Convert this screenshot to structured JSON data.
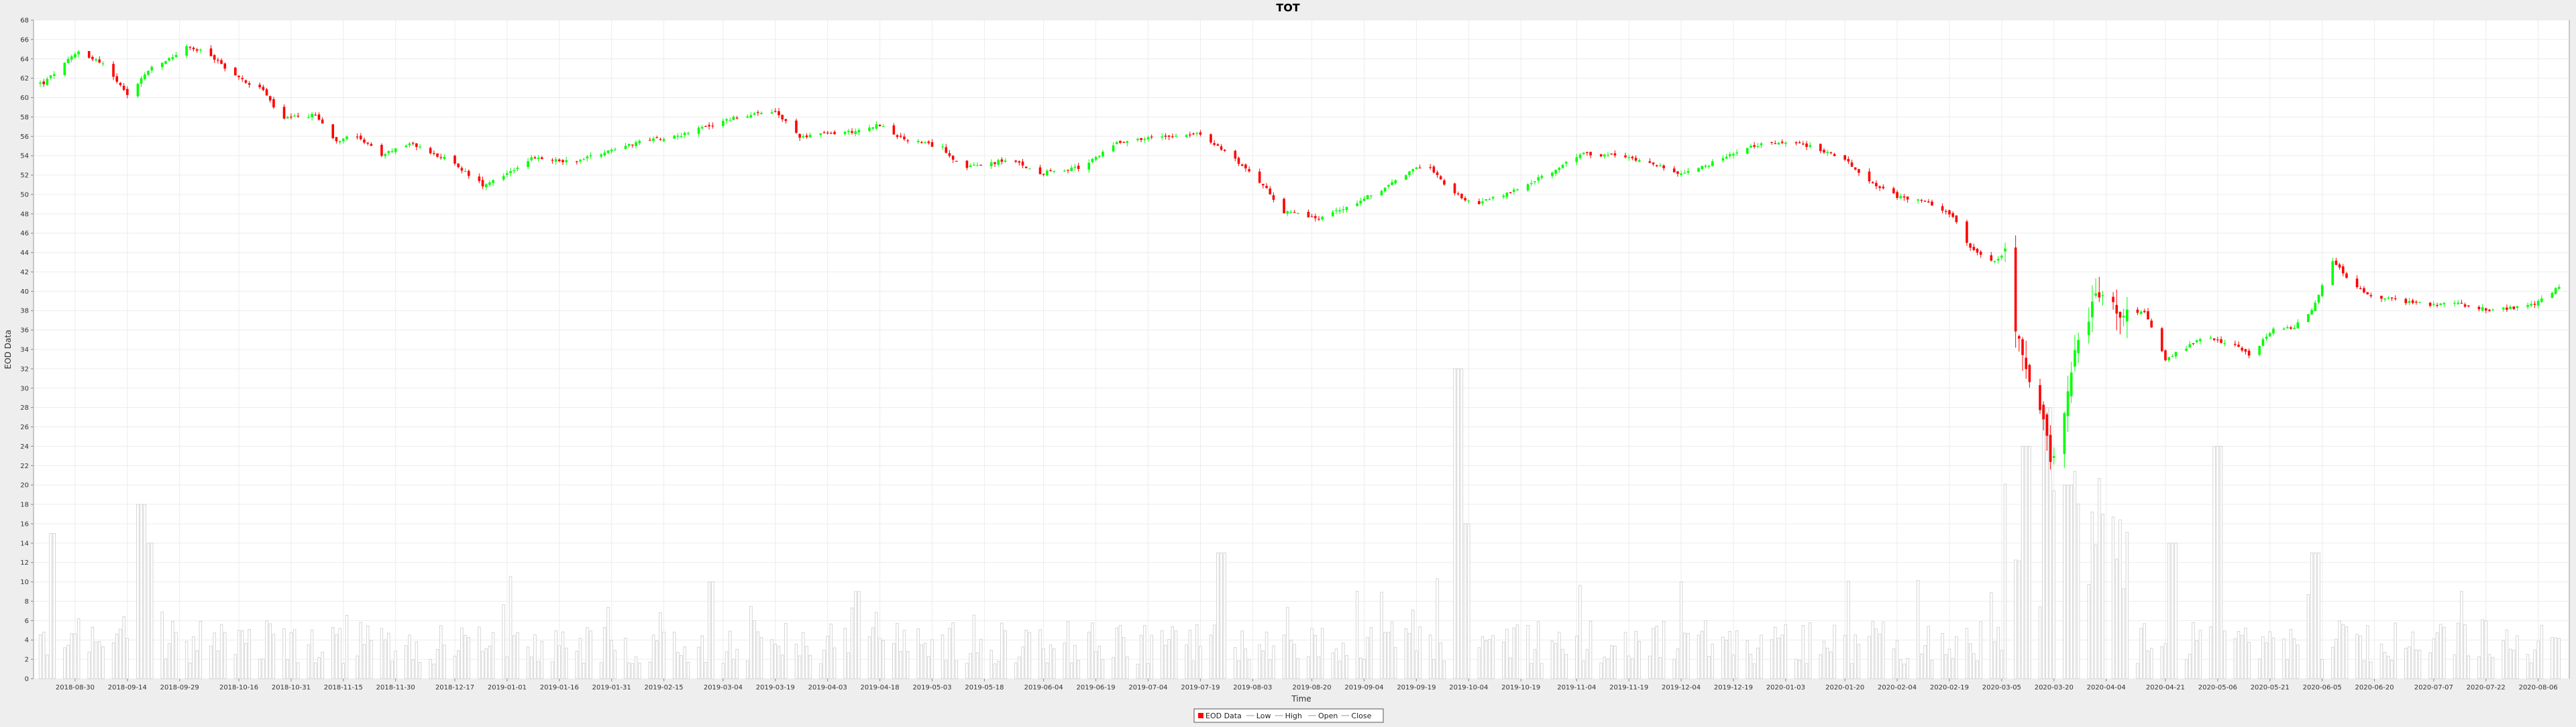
{
  "chart_data": {
    "type": "candlestick",
    "title": "TOT",
    "xlabel": "Time",
    "ylabel": "EOD Data",
    "ylim": [
      0,
      68
    ],
    "yticks": [
      0,
      2,
      4,
      6,
      8,
      10,
      12,
      14,
      16,
      18,
      20,
      22,
      24,
      26,
      28,
      30,
      32,
      34,
      36,
      38,
      40,
      42,
      44,
      46,
      48,
      50,
      52,
      54,
      56,
      58,
      60,
      62,
      64,
      66,
      68
    ],
    "xlim": [
      "2018-08-20",
      "2020-08-13"
    ],
    "xticks": [
      "2018-08-30",
      "2018-09-14",
      "2018-09-29",
      "2018-10-16",
      "2018-10-31",
      "2018-11-15",
      "2018-11-30",
      "2018-12-17",
      "2019-01-01",
      "2019-01-16",
      "2019-01-31",
      "2019-02-15",
      "2019-03-04",
      "2019-03-19",
      "2019-04-03",
      "2019-04-18",
      "2019-05-03",
      "2019-05-18",
      "2019-06-04",
      "2019-06-19",
      "2019-07-04",
      "2019-07-19",
      "2019-08-03",
      "2019-08-20",
      "2019-09-04",
      "2019-09-19",
      "2019-10-04",
      "2019-10-19",
      "2019-11-04",
      "2019-11-19",
      "2019-12-04",
      "2019-12-19",
      "2020-01-03",
      "2020-01-20",
      "2020-02-04",
      "2020-02-19",
      "2020-03-05",
      "2020-03-20",
      "2020-04-04",
      "2020-04-21",
      "2020-05-06",
      "2020-05-21",
      "2020-06-05",
      "2020-06-20",
      "2020-07-07",
      "2020-07-22",
      "2020-08-06"
    ],
    "grid": true,
    "legend_position": "bottom-center",
    "legend": [
      "EOD Data",
      "Low",
      "High",
      "Open",
      "Close"
    ],
    "up_color": "#00ff00",
    "down_color": "#ff0000",
    "volume_color": "#cccccc",
    "price_path": [
      [
        "2018-08-21",
        61.5
      ],
      [
        "2018-08-31",
        64.8
      ],
      [
        "2018-09-07",
        63.5
      ],
      [
        "2018-09-14",
        60.2
      ],
      [
        "2018-09-20",
        62.8
      ],
      [
        "2018-09-26",
        64.0
      ],
      [
        "2018-10-01",
        65.2
      ],
      [
        "2018-10-07",
        64.6
      ],
      [
        "2018-10-16",
        62.0
      ],
      [
        "2018-10-23",
        60.8
      ],
      [
        "2018-10-28",
        57.8
      ],
      [
        "2018-11-07",
        58.2
      ],
      [
        "2018-11-13",
        55.5
      ],
      [
        "2018-11-18",
        56.4
      ],
      [
        "2018-11-26",
        54.0
      ],
      [
        "2018-12-04",
        55.3
      ],
      [
        "2018-12-15",
        53.6
      ],
      [
        "2018-12-25",
        51.0
      ],
      [
        "2019-01-01",
        52.2
      ],
      [
        "2019-01-08",
        53.7
      ],
      [
        "2019-01-20",
        53.4
      ],
      [
        "2019-02-05",
        55.2
      ],
      [
        "2019-02-20",
        56.2
      ],
      [
        "2019-03-08",
        58.0
      ],
      [
        "2019-03-19",
        58.5
      ],
      [
        "2019-03-26",
        56.0
      ],
      [
        "2019-04-10",
        56.5
      ],
      [
        "2019-04-18",
        57.2
      ],
      [
        "2019-04-24",
        55.8
      ],
      [
        "2019-05-06",
        54.8
      ],
      [
        "2019-05-12",
        52.7
      ],
      [
        "2019-05-25",
        53.6
      ],
      [
        "2019-06-03",
        52.2
      ],
      [
        "2019-06-15",
        52.8
      ],
      [
        "2019-06-25",
        55.4
      ],
      [
        "2019-07-08",
        56.0
      ],
      [
        "2019-07-18",
        56.3
      ],
      [
        "2019-07-28",
        54.0
      ],
      [
        "2019-08-06",
        51.0
      ],
      [
        "2019-08-12",
        48.2
      ],
      [
        "2019-08-22",
        47.5
      ],
      [
        "2019-09-02",
        49.2
      ],
      [
        "2019-09-14",
        51.5
      ],
      [
        "2019-09-22",
        53.4
      ],
      [
        "2019-09-28",
        50.5
      ],
      [
        "2019-10-06",
        49.0
      ],
      [
        "2019-10-16",
        50.2
      ],
      [
        "2019-10-28",
        52.3
      ],
      [
        "2019-11-05",
        54.2
      ],
      [
        "2019-11-15",
        54.0
      ],
      [
        "2019-11-24",
        53.5
      ],
      [
        "2019-12-04",
        52.0
      ],
      [
        "2019-12-14",
        53.4
      ],
      [
        "2019-12-25",
        55.0
      ],
      [
        "2020-01-03",
        55.5
      ],
      [
        "2020-01-10",
        55.0
      ],
      [
        "2020-01-20",
        53.6
      ],
      [
        "2020-01-28",
        51.2
      ],
      [
        "2020-02-04",
        49.8
      ],
      [
        "2020-02-12",
        49.2
      ],
      [
        "2020-02-20",
        47.8
      ],
      [
        "2020-02-25",
        44.5
      ],
      [
        "2020-03-02",
        43.0
      ],
      [
        "2020-03-06",
        43.8
      ],
      [
        "2020-03-09",
        36.0
      ],
      [
        "2020-03-13",
        30.5
      ],
      [
        "2020-03-17",
        26.5
      ],
      [
        "2020-03-19",
        22.5
      ],
      [
        "2020-03-23",
        27.5
      ],
      [
        "2020-03-26",
        34.0
      ],
      [
        "2020-03-31",
        38.5
      ],
      [
        "2020-04-03",
        40.2
      ],
      [
        "2020-04-08",
        37.5
      ],
      [
        "2020-04-15",
        37.8
      ],
      [
        "2020-04-21",
        33.0
      ],
      [
        "2020-05-02",
        35.2
      ],
      [
        "2020-05-10",
        34.6
      ],
      [
        "2020-05-15",
        33.4
      ],
      [
        "2020-05-22",
        36.0
      ],
      [
        "2020-05-28",
        36.3
      ],
      [
        "2020-06-02",
        38.0
      ],
      [
        "2020-06-05",
        40.5
      ],
      [
        "2020-06-08",
        43.2
      ],
      [
        "2020-06-13",
        41.0
      ],
      [
        "2020-06-18",
        39.6
      ],
      [
        "2020-06-28",
        39.0
      ],
      [
        "2020-07-06",
        38.6
      ],
      [
        "2020-07-13",
        38.8
      ],
      [
        "2020-07-24",
        38.0
      ],
      [
        "2020-08-05",
        38.6
      ],
      [
        "2020-08-12",
        40.5
      ]
    ],
    "volume_peaks": [
      [
        "2018-08-24",
        15
      ],
      [
        "2018-09-18",
        18
      ],
      [
        "2018-09-21",
        14
      ],
      [
        "2019-03-01",
        10
      ],
      [
        "2019-04-12",
        9
      ],
      [
        "2019-07-25",
        13
      ],
      [
        "2019-10-01",
        32
      ],
      [
        "2019-10-03",
        16
      ],
      [
        "2020-03-12",
        24
      ],
      [
        "2020-03-18",
        28
      ],
      [
        "2020-03-24",
        20
      ],
      [
        "2020-04-23",
        14
      ],
      [
        "2020-05-06",
        24
      ],
      [
        "2020-06-03",
        13
      ]
    ]
  }
}
